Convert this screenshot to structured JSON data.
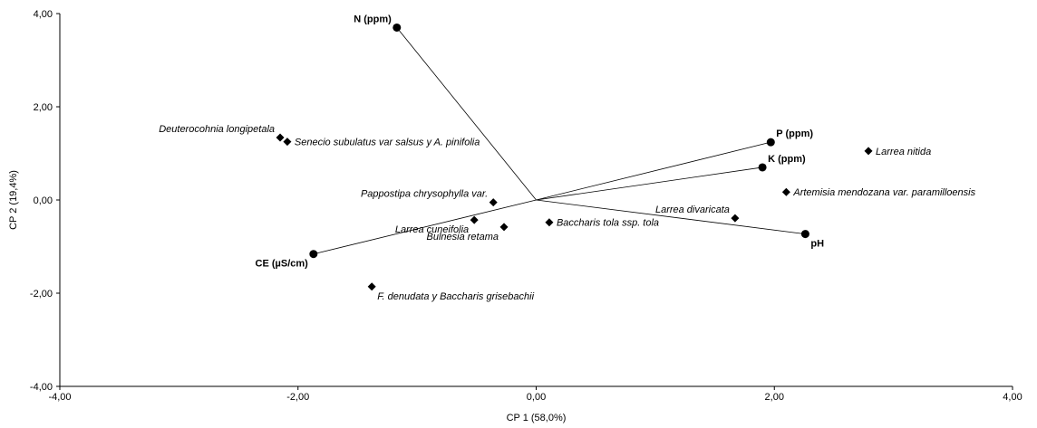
{
  "chart_data": {
    "type": "scatter",
    "title": "",
    "xlabel": "CP 1 (58,0%)",
    "ylabel": "CP 2 (19,4%)",
    "xlim": [
      -4,
      4
    ],
    "ylim": [
      -4,
      4
    ],
    "grid": false,
    "x_ticks": [
      {
        "value": -4,
        "label": "-4,00"
      },
      {
        "value": -2,
        "label": "-2,00"
      },
      {
        "value": 0,
        "label": "0,00"
      },
      {
        "value": 2,
        "label": "2,00"
      },
      {
        "value": 4,
        "label": "4,00"
      }
    ],
    "y_ticks": [
      {
        "value": 4,
        "label": "4,00"
      },
      {
        "value": 2,
        "label": "2,00"
      },
      {
        "value": 0,
        "label": "0,00"
      },
      {
        "value": -2,
        "label": "-2,00"
      },
      {
        "value": -4,
        "label": "-4,00"
      }
    ],
    "variables": [
      {
        "label": "N (ppm)",
        "x": -1.17,
        "y": 3.7,
        "label_pos": "upper-left"
      },
      {
        "label": "P (ppm)",
        "x": 1.97,
        "y": 1.24,
        "label_pos": "upper-right"
      },
      {
        "label": "K (ppm)",
        "x": 1.9,
        "y": 0.7,
        "label_pos": "upper-right"
      },
      {
        "label": "pH",
        "x": 2.26,
        "y": -0.73,
        "label_pos": "lower-right"
      },
      {
        "label": "CE (µS/cm)",
        "x": -1.87,
        "y": -1.16,
        "label_pos": "lower-left"
      }
    ],
    "species": [
      {
        "label": "Deuterocohnia longipetala",
        "x": -2.15,
        "y": 1.34,
        "label_pos": "upper-left"
      },
      {
        "label": "Senecio subulatus var salsus y A. pinifolia",
        "x": -2.09,
        "y": 1.25,
        "label_pos": "right"
      },
      {
        "label": "Larrea nitida",
        "x": 2.79,
        "y": 1.05,
        "label_pos": "right"
      },
      {
        "label": "Artemisia mendozana var. paramilloensis",
        "x": 2.1,
        "y": 0.17,
        "label_pos": "right"
      },
      {
        "label": "Pappostipa chrysophylla var.",
        "x": -0.36,
        "y": -0.05,
        "label_pos": "upper-left"
      },
      {
        "label": "Larrea divaricata",
        "x": 1.67,
        "y": -0.39,
        "label_pos": "upper-left"
      },
      {
        "label": "Larrea cuneifolia",
        "x": -0.52,
        "y": -0.43,
        "label_pos": "lower-left"
      },
      {
        "label": "Baccharis tola ssp. tola",
        "x": 0.11,
        "y": -0.48,
        "label_pos": "right"
      },
      {
        "label": "Bulnesia retama",
        "x": -0.27,
        "y": -0.58,
        "label_pos": "lower-left"
      },
      {
        "label": "F. denudata y Baccharis grisebachii",
        "x": -1.38,
        "y": -1.86,
        "label_pos": "lower-right"
      }
    ]
  }
}
